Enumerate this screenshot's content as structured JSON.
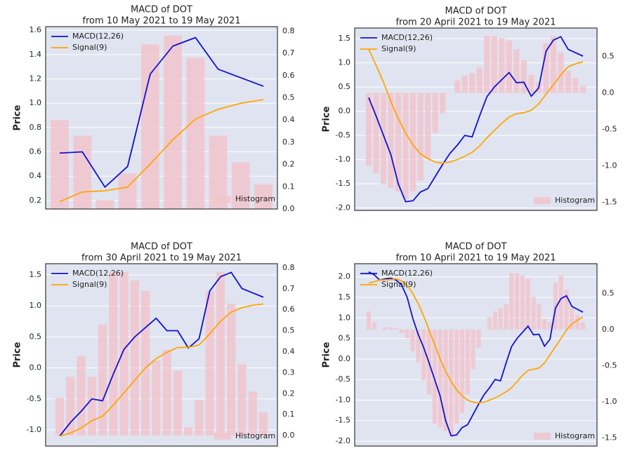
{
  "chart_data": [
    {
      "type": "line",
      "title": "MACD of DOT",
      "subtitle": "from 10 May 2021 to 19 May 2021",
      "ylabel": "Price",
      "grid": true,
      "legend": "upper left",
      "ylim": [
        0.13,
        1.63
      ],
      "yticks": [
        0.2,
        0.4,
        0.6,
        0.8,
        {
          "value": 1,
          "label": "1.0"
        },
        1.2,
        1.4,
        1.6
      ],
      "y2lim": [
        0,
        0.82
      ],
      "y2ticks": [
        {
          "value": 0,
          "label": "0.0"
        },
        0.1,
        0.2,
        0.3,
        0.4,
        0.5,
        0.6,
        0.7,
        0.8
      ],
      "series": [
        {
          "name": "MACD(12,26)",
          "color": "#1010d0",
          "values": [
            0.59,
            0.6,
            0.31,
            0.48,
            1.24,
            1.47,
            1.54,
            1.28,
            1.21,
            1.14
          ]
        },
        {
          "name": "Signal(9)",
          "color": "#ffa500",
          "values": [
            0.19,
            0.27,
            0.28,
            0.31,
            0.5,
            0.7,
            0.87,
            0.95,
            1.0,
            1.03
          ]
        },
        {
          "name": "Histogram",
          "type": "bar",
          "axis": "y2",
          "legend": "lower right",
          "color": "#f2c4cd",
          "values": [
            0.4,
            0.33,
            0.04,
            0.16,
            0.74,
            0.78,
            0.68,
            0.33,
            0.21,
            0.11
          ]
        }
      ]
    },
    {
      "type": "line",
      "title": "MACD of DOT",
      "subtitle": "from 20 April 2021 to 19 May 2021",
      "ylabel": "Price",
      "grid": true,
      "legend": "upper left",
      "ylim": [
        -2.05,
        1.72
      ],
      "yticks": [
        {
          "value": -2,
          "label": "-2.0"
        },
        -1.5,
        {
          "value": -1,
          "label": "-1.0"
        },
        -0.5,
        {
          "value": 0,
          "label": "0.0"
        },
        0.5,
        {
          "value": 1,
          "label": "1.0"
        },
        1.5
      ],
      "y2lim": [
        -1.61,
        0.89
      ],
      "y2ticks": [
        -1.5,
        {
          "value": -1,
          "label": "-1.0"
        },
        -0.5,
        {
          "value": 0,
          "label": "0.0"
        },
        0.5
      ],
      "series": [
        {
          "name": "MACD(12,26)",
          "color": "#1010d0",
          "values": [
            0.28,
            -0.1,
            -0.5,
            -0.9,
            -1.5,
            -1.87,
            -1.85,
            -1.67,
            -1.6,
            -1.35,
            -1.1,
            -0.87,
            -0.7,
            -0.5,
            -0.53,
            -0.1,
            0.3,
            0.5,
            0.65,
            0.8,
            0.59,
            0.6,
            0.31,
            0.48,
            1.24,
            1.47,
            1.54,
            1.28,
            1.21,
            1.14
          ]
        },
        {
          "name": "Signal(9)",
          "color": "#ffa500",
          "values": [
            1.28,
            0.95,
            0.6,
            0.2,
            -0.15,
            -0.45,
            -0.7,
            -0.88,
            -0.98,
            -1.05,
            -1.07,
            -1.05,
            -1.0,
            -0.93,
            -0.85,
            -0.72,
            -0.55,
            -0.4,
            -0.25,
            -0.12,
            -0.05,
            -0.03,
            0.02,
            0.15,
            0.35,
            0.55,
            0.75,
            0.92,
            0.98,
            1.02
          ]
        },
        {
          "name": "Histogram",
          "type": "bar",
          "axis": "y2",
          "legend": "lower right",
          "color": "#f2c4cd",
          "values": [
            -1.0,
            -1.1,
            -1.25,
            -1.3,
            -1.35,
            -1.45,
            -1.35,
            -1.2,
            -0.9,
            -0.55,
            -0.28,
            0.0,
            0.17,
            0.24,
            0.27,
            0.35,
            0.78,
            0.78,
            0.75,
            0.72,
            0.6,
            0.45,
            0.25,
            0.15,
            0.68,
            0.78,
            0.55,
            0.3,
            0.2,
            0.1
          ]
        }
      ]
    },
    {
      "type": "line",
      "title": "MACD of DOT",
      "subtitle": "from 30 April 2021 to 19 May 2021",
      "ylabel": "Price",
      "grid": true,
      "legend": "upper left",
      "ylim": [
        -1.26,
        1.68
      ],
      "yticks": [
        {
          "value": -1,
          "label": "-1.0"
        },
        -0.5,
        {
          "value": 0,
          "label": "0.0"
        },
        0.5,
        {
          "value": 1,
          "label": "1.0"
        },
        1.5
      ],
      "y2lim": [
        -0.05,
        0.82
      ],
      "y2ticks": [
        {
          "value": 0,
          "label": "0.0"
        },
        0.1,
        0.2,
        0.3,
        0.4,
        0.5,
        0.6,
        0.7,
        0.8
      ],
      "series": [
        {
          "name": "MACD(12,26)",
          "color": "#1010d0",
          "values": [
            -1.1,
            -0.88,
            -0.7,
            -0.5,
            -0.53,
            -0.1,
            0.3,
            0.5,
            0.65,
            0.8,
            0.6,
            0.6,
            0.32,
            0.47,
            1.24,
            1.47,
            1.54,
            1.28,
            1.21,
            1.14
          ]
        },
        {
          "name": "Signal(9)",
          "color": "#ffa500",
          "values": [
            -1.1,
            -1.05,
            -0.97,
            -0.85,
            -0.78,
            -0.6,
            -0.4,
            -0.2,
            0.0,
            0.15,
            0.25,
            0.33,
            0.33,
            0.37,
            0.55,
            0.75,
            0.9,
            0.97,
            1.01,
            1.03
          ]
        },
        {
          "name": "Histogram",
          "type": "bar",
          "axis": "y2",
          "legend": "lower right",
          "color": "#f2c4cd",
          "values": [
            0.18,
            0.28,
            0.38,
            0.28,
            0.53,
            0.78,
            0.78,
            0.74,
            0.69,
            0.36,
            0.41,
            0.31,
            0.04,
            0.17,
            0.69,
            0.78,
            0.63,
            0.34,
            0.21,
            0.11
          ]
        }
      ]
    },
    {
      "type": "line",
      "title": "MACD of DOT",
      "subtitle": "from 10 April 2021 to 19 May 2021",
      "ylabel": "Price",
      "grid": true,
      "legend": "upper left",
      "ylim": [
        -2.12,
        2.32
      ],
      "yticks": [
        {
          "value": -2,
          "label": "-2.0"
        },
        -1.5,
        {
          "value": -1,
          "label": "-1.0"
        },
        -0.5,
        {
          "value": 0,
          "label": "0.0"
        },
        0.5,
        {
          "value": 1,
          "label": "1.0"
        },
        1.5,
        {
          "value": 2,
          "label": "2.0"
        }
      ],
      "y2lim": [
        -1.61,
        0.91
      ],
      "y2ticks": [
        -1.5,
        {
          "value": -1,
          "label": "-1.0"
        },
        -0.5,
        {
          "value": 0,
          "label": "0.0"
        },
        0.5
      ],
      "series": [
        {
          "name": "MACD(12,26)",
          "color": "#1010d0",
          "values": [
            2.12,
            2.05,
            1.92,
            1.95,
            1.97,
            1.92,
            1.8,
            1.5,
            1.0,
            0.6,
            0.28,
            -0.1,
            -0.5,
            -0.9,
            -1.5,
            -1.87,
            -1.85,
            -1.67,
            -1.6,
            -1.35,
            -1.1,
            -0.87,
            -0.7,
            -0.5,
            -0.53,
            -0.1,
            0.3,
            0.5,
            0.65,
            0.8,
            0.59,
            0.6,
            0.31,
            0.48,
            1.24,
            1.47,
            1.54,
            1.28,
            1.21,
            1.14
          ]
        },
        {
          "name": "Signal(9)",
          "color": "#ffa500",
          "values": [
            1.85,
            1.88,
            1.92,
            1.93,
            1.93,
            1.95,
            1.9,
            1.8,
            1.6,
            1.35,
            1.05,
            0.7,
            0.35,
            0.0,
            -0.3,
            -0.55,
            -0.75,
            -0.9,
            -1.0,
            -1.05,
            -1.07,
            -1.05,
            -1.0,
            -0.95,
            -0.88,
            -0.8,
            -0.7,
            -0.55,
            -0.4,
            -0.28,
            -0.25,
            -0.22,
            -0.1,
            0.1,
            0.3,
            0.5,
            0.7,
            0.85,
            0.95,
            1.02
          ]
        },
        {
          "name": "Histogram",
          "type": "bar",
          "axis": "y2",
          "legend": "lower right",
          "color": "#f2c4cd",
          "values": [
            0.25,
            0.1,
            0.0,
            0.03,
            0.03,
            0.02,
            -0.05,
            -0.12,
            -0.3,
            -0.45,
            -0.7,
            -0.9,
            -1.3,
            -1.35,
            -1.4,
            -1.45,
            -1.3,
            -1.15,
            -0.9,
            -0.55,
            -0.25,
            0.0,
            0.17,
            0.25,
            0.3,
            0.35,
            0.78,
            0.78,
            0.75,
            0.7,
            0.45,
            0.35,
            0.15,
            0.1,
            0.65,
            0.75,
            0.55,
            0.3,
            0.2,
            0.1
          ]
        }
      ]
    }
  ]
}
